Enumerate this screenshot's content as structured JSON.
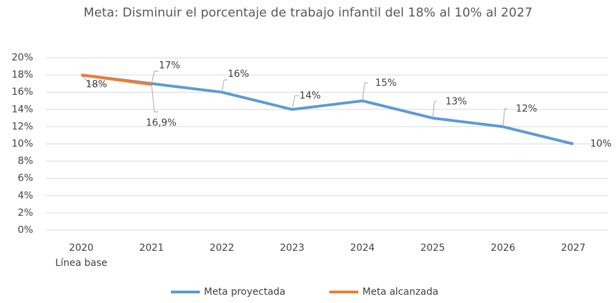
{
  "chart_data": {
    "type": "line",
    "title": "Meta: Disminuir el porcentaje de trabajo infantil del 18% al 10% al 2027",
    "categories": [
      "2020",
      "2021",
      "2022",
      "2023",
      "2024",
      "2025",
      "2026",
      "2027"
    ],
    "baseline_label": "Línea base",
    "series": [
      {
        "name": "Meta proyectada",
        "color": "#5b9bd5",
        "values": [
          18,
          17,
          16,
          14,
          15,
          13,
          12,
          10
        ],
        "value_labels": [
          "18%",
          "17%",
          "16%",
          "14%",
          "15%",
          "13%",
          "12%",
          "10%"
        ]
      },
      {
        "name": "Meta alcanzada",
        "color": "#ed7d31",
        "values": [
          18,
          16.9,
          null,
          null,
          null,
          null,
          null,
          null
        ],
        "value_labels": [
          null,
          "16,9%",
          null,
          null,
          null,
          null,
          null,
          null
        ]
      }
    ],
    "ylim": [
      0,
      20
    ],
    "yticks": [
      {
        "value": 0,
        "label": "0%"
      },
      {
        "value": 2,
        "label": "2%"
      },
      {
        "value": 4,
        "label": "4%"
      },
      {
        "value": 6,
        "label": "6%"
      },
      {
        "value": 8,
        "label": "8%"
      },
      {
        "value": 10,
        "label": "10%"
      },
      {
        "value": 12,
        "label": "12%"
      },
      {
        "value": 14,
        "label": "14%"
      },
      {
        "value": 16,
        "label": "16%"
      },
      {
        "value": 18,
        "label": "18%"
      },
      {
        "value": 20,
        "label": "20%"
      }
    ],
    "grid": true,
    "legend": "bottom"
  }
}
